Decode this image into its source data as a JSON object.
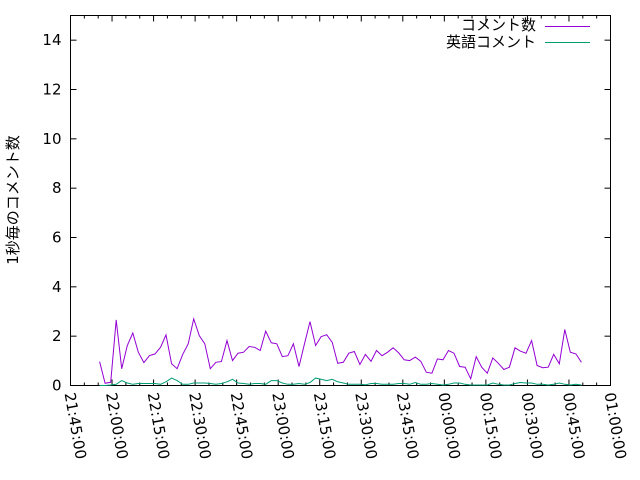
{
  "chart_data": {
    "type": "line",
    "title": "",
    "xlabel": "",
    "ylabel": "1秒毎のコメント数",
    "xlim": [
      "21:45:00",
      "01:00:00"
    ],
    "ylim": [
      0,
      15
    ],
    "x_ticks": [
      "21:45:00",
      "22:00:00",
      "22:15:00",
      "22:30:00",
      "22:45:00",
      "23:00:00",
      "23:15:00",
      "23:30:00",
      "23:45:00",
      "00:00:00",
      "00:15:00",
      "00:30:00",
      "00:45:00",
      "01:00:00"
    ],
    "y_ticks": [
      "0",
      "2",
      "4",
      "6",
      "8",
      "10",
      "12",
      "14"
    ],
    "grid": false,
    "legend_position": "top-right",
    "x": [
      "21:55:30",
      "21:57:30",
      "21:59:30",
      "22:01:30",
      "22:03:30",
      "22:05:30",
      "22:07:30",
      "22:09:30",
      "22:11:30",
      "22:13:30",
      "22:15:30",
      "22:17:30",
      "22:19:30",
      "22:21:30",
      "22:23:30",
      "22:25:30",
      "22:27:30",
      "22:29:30",
      "22:31:30",
      "22:33:30",
      "22:35:30",
      "22:37:30",
      "22:39:30",
      "22:41:30",
      "22:43:30",
      "22:45:30",
      "22:47:30",
      "22:49:30",
      "22:51:30",
      "22:53:30",
      "22:55:30",
      "22:57:30",
      "22:59:30",
      "23:01:30",
      "23:03:30",
      "23:05:30",
      "23:07:30",
      "23:09:30",
      "23:11:30",
      "23:13:30",
      "23:15:30",
      "23:17:30",
      "23:19:30",
      "23:21:30",
      "23:23:30",
      "23:25:30",
      "23:27:30",
      "23:29:30",
      "23:31:30",
      "23:33:30",
      "23:35:30",
      "23:37:30",
      "23:39:30",
      "23:41:30",
      "23:43:30",
      "23:45:30",
      "23:47:30",
      "23:49:30",
      "23:51:30",
      "23:53:30",
      "23:55:30",
      "23:57:30",
      "23:59:30",
      "00:01:30",
      "00:03:30",
      "00:05:30",
      "00:07:30",
      "00:09:30",
      "00:11:30",
      "00:13:30",
      "00:15:30",
      "00:17:30",
      "00:19:30",
      "00:21:30",
      "00:23:30",
      "00:25:30",
      "00:27:30",
      "00:29:30",
      "00:31:30",
      "00:33:30",
      "00:35:30",
      "00:37:30",
      "00:39:30",
      "00:41:30",
      "00:43:30",
      "00:45:30",
      "00:47:30",
      "00:49:30"
    ],
    "series": [
      {
        "name": "コメント数",
        "color": "#9400d3",
        "values": [
          0.97,
          0.09,
          0.13,
          2.66,
          0.68,
          1.62,
          2.13,
          1.35,
          0.93,
          1.21,
          1.28,
          1.55,
          2.05,
          0.88,
          0.68,
          1.26,
          1.69,
          2.7,
          2.02,
          1.69,
          0.68,
          0.94,
          0.97,
          1.82,
          1.01,
          1.31,
          1.35,
          1.58,
          1.55,
          1.42,
          2.2,
          1.73,
          1.69,
          1.17,
          1.21,
          1.69,
          0.77,
          1.69,
          2.59,
          1.62,
          1.98,
          2.06,
          1.75,
          0.9,
          0.94,
          1.31,
          1.38,
          0.85,
          1.26,
          0.98,
          1.42,
          1.21,
          1.35,
          1.53,
          1.32,
          1.04,
          1.01,
          1.15,
          0.98,
          0.54,
          0.5,
          1.08,
          1.04,
          1.42,
          1.31,
          0.77,
          0.74,
          0.27,
          1.17,
          0.74,
          0.5,
          1.12,
          0.9,
          0.65,
          0.74,
          1.53,
          1.39,
          1.31,
          1.82,
          0.81,
          0.72,
          0.74,
          1.26,
          0.88,
          2.27,
          1.35,
          1.28,
          0.94
        ]
      },
      {
        "name": "英語コメント",
        "color": "#009e73",
        "values": [
          0.0,
          0.0,
          0.02,
          0.05,
          0.2,
          0.1,
          0.05,
          0.08,
          0.08,
          0.08,
          0.08,
          0.05,
          0.15,
          0.3,
          0.2,
          0.05,
          0.05,
          0.1,
          0.1,
          0.1,
          0.08,
          0.05,
          0.08,
          0.15,
          0.25,
          0.1,
          0.08,
          0.05,
          0.08,
          0.08,
          0.05,
          0.2,
          0.2,
          0.1,
          0.05,
          0.05,
          0.08,
          0.05,
          0.12,
          0.3,
          0.25,
          0.2,
          0.25,
          0.15,
          0.1,
          0.05,
          0.05,
          0.05,
          0.03,
          0.08,
          0.08,
          0.05,
          0.05,
          0.05,
          0.08,
          0.08,
          0.05,
          0.12,
          0.05,
          0.05,
          0.08,
          0.05,
          0.02,
          0.05,
          0.1,
          0.1,
          0.05,
          0.02,
          0.02,
          0.02,
          0.02,
          0.1,
          0.05,
          0.02,
          0.02,
          0.08,
          0.12,
          0.1,
          0.1,
          0.05,
          0.05,
          0.02,
          0.05,
          0.1,
          0.05,
          0.02,
          0.05,
          0.02
        ]
      }
    ]
  }
}
